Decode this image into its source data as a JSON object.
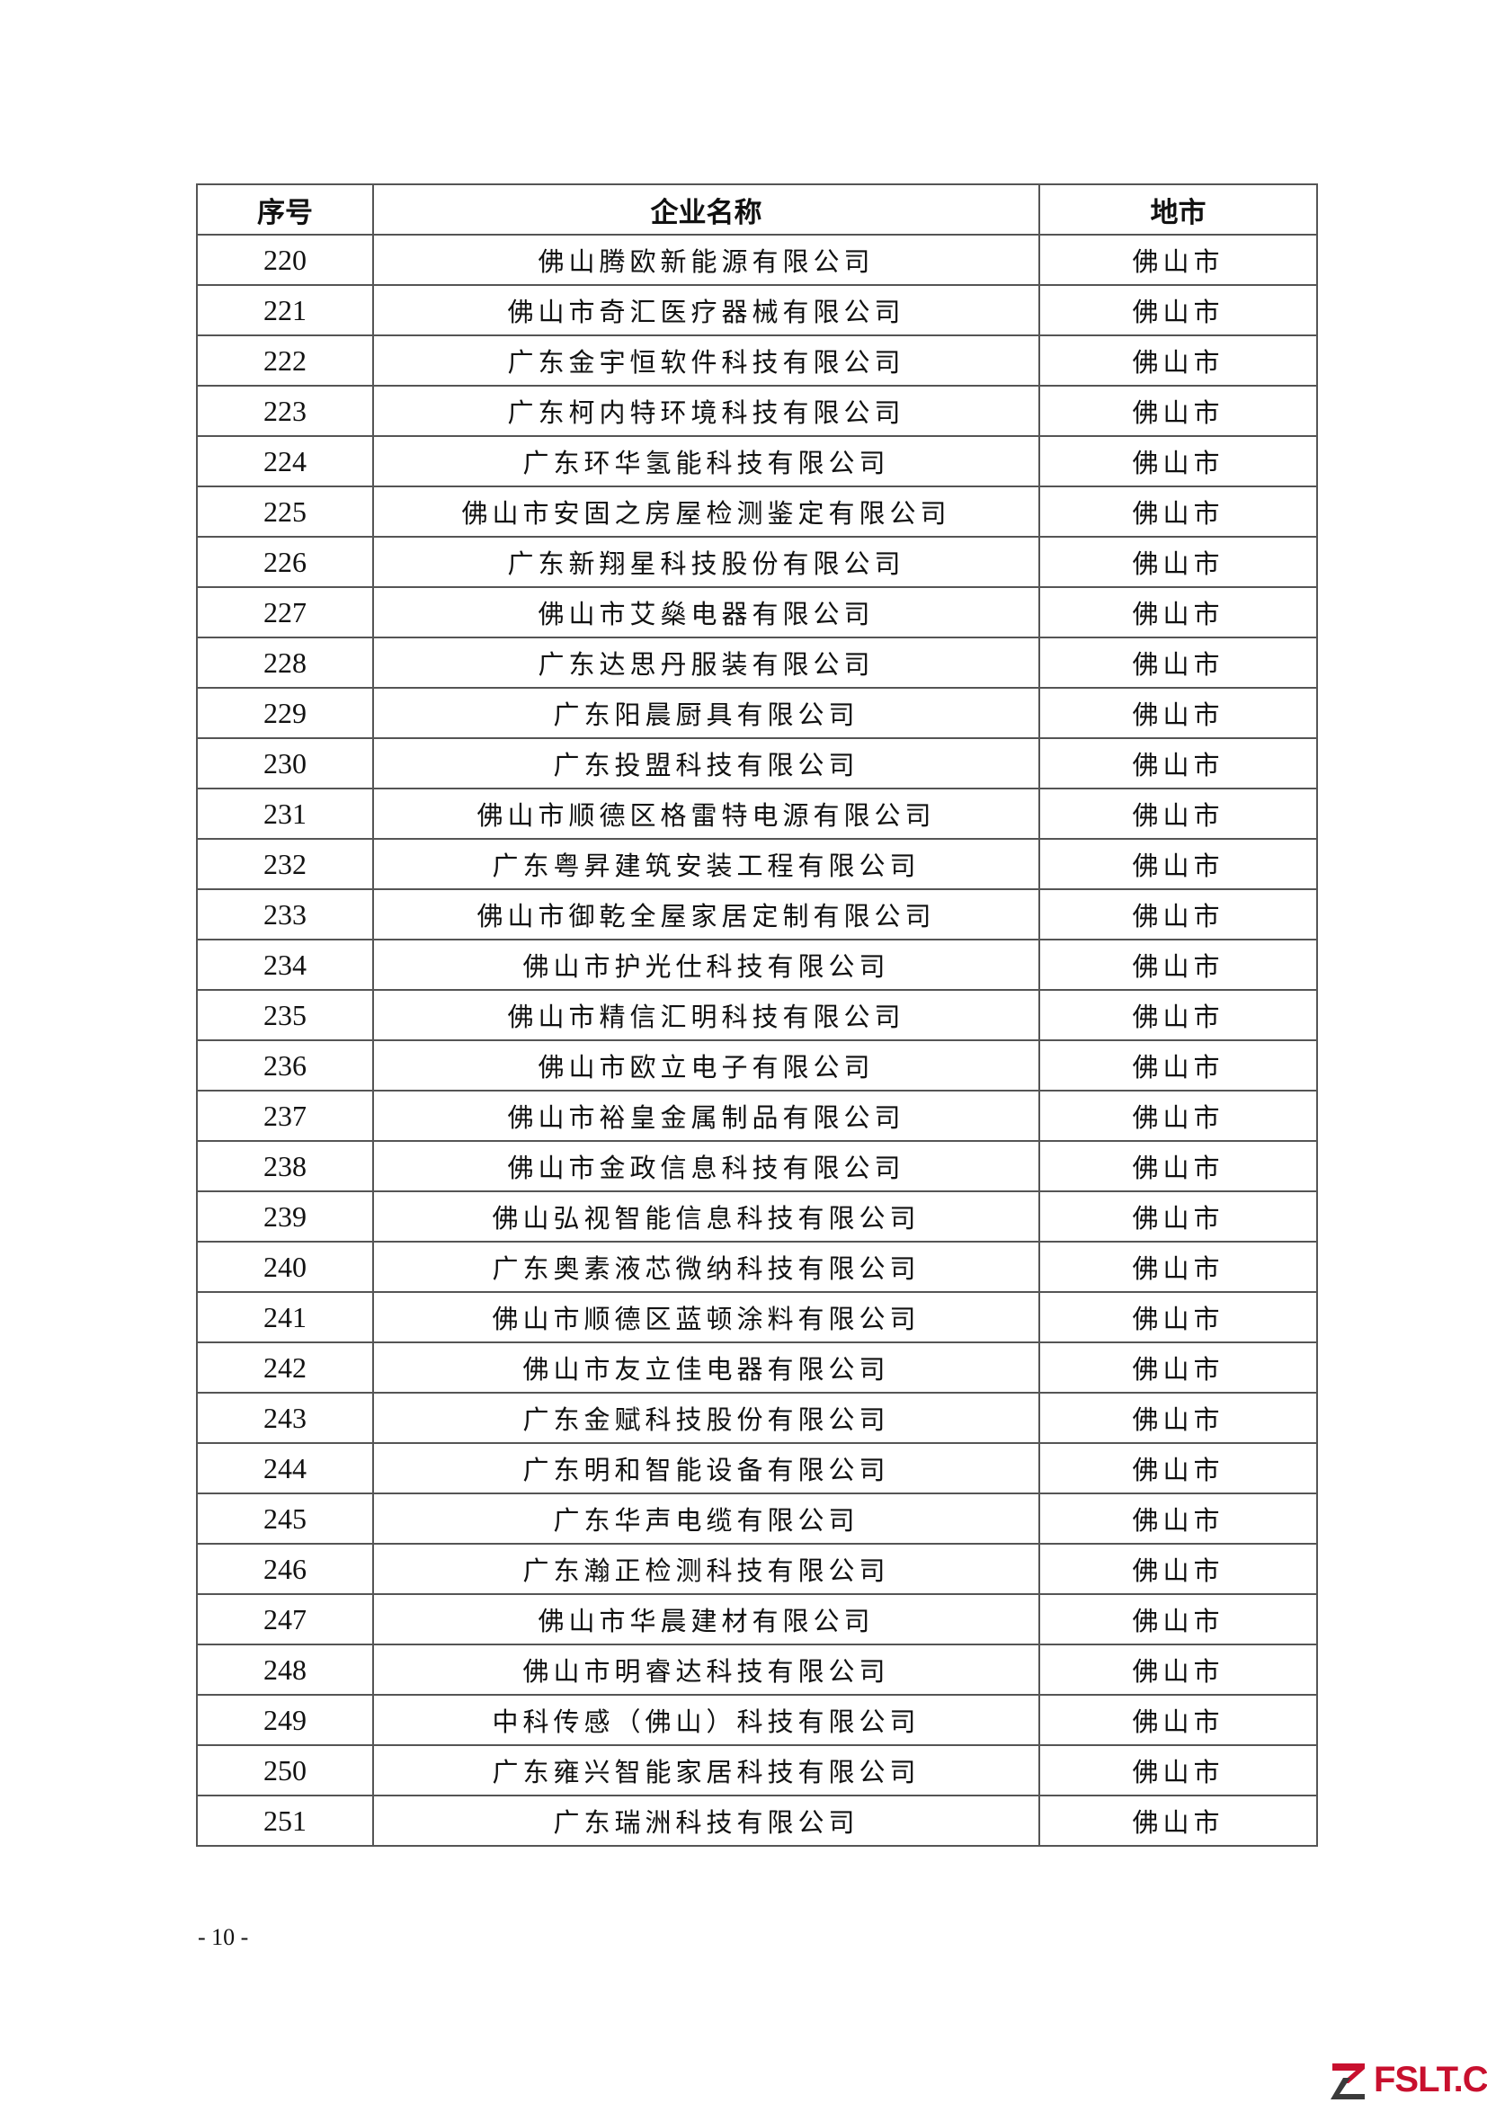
{
  "table": {
    "headers": [
      "序号",
      "企业名称",
      "地市"
    ],
    "rows": [
      [
        "220",
        "佛山腾欧新能源有限公司",
        "佛山市"
      ],
      [
        "221",
        "佛山市奇汇医疗器械有限公司",
        "佛山市"
      ],
      [
        "222",
        "广东金宇恒软件科技有限公司",
        "佛山市"
      ],
      [
        "223",
        "广东柯内特环境科技有限公司",
        "佛山市"
      ],
      [
        "224",
        "广东环华氢能科技有限公司",
        "佛山市"
      ],
      [
        "225",
        "佛山市安固之房屋检测鉴定有限公司",
        "佛山市"
      ],
      [
        "226",
        "广东新翔星科技股份有限公司",
        "佛山市"
      ],
      [
        "227",
        "佛山市艾燊电器有限公司",
        "佛山市"
      ],
      [
        "228",
        "广东达思丹服装有限公司",
        "佛山市"
      ],
      [
        "229",
        "广东阳晨厨具有限公司",
        "佛山市"
      ],
      [
        "230",
        "广东投盟科技有限公司",
        "佛山市"
      ],
      [
        "231",
        "佛山市顺德区格雷特电源有限公司",
        "佛山市"
      ],
      [
        "232",
        "广东粤昇建筑安装工程有限公司",
        "佛山市"
      ],
      [
        "233",
        "佛山市御乾全屋家居定制有限公司",
        "佛山市"
      ],
      [
        "234",
        "佛山市护光仕科技有限公司",
        "佛山市"
      ],
      [
        "235",
        "佛山市精信汇明科技有限公司",
        "佛山市"
      ],
      [
        "236",
        "佛山市欧立电子有限公司",
        "佛山市"
      ],
      [
        "237",
        "佛山市裕皇金属制品有限公司",
        "佛山市"
      ],
      [
        "238",
        "佛山市金政信息科技有限公司",
        "佛山市"
      ],
      [
        "239",
        "佛山弘视智能信息科技有限公司",
        "佛山市"
      ],
      [
        "240",
        "广东奥素液芯微纳科技有限公司",
        "佛山市"
      ],
      [
        "241",
        "佛山市顺德区蓝顿涂料有限公司",
        "佛山市"
      ],
      [
        "242",
        "佛山市友立佳电器有限公司",
        "佛山市"
      ],
      [
        "243",
        "广东金赋科技股份有限公司",
        "佛山市"
      ],
      [
        "244",
        "广东明和智能设备有限公司",
        "佛山市"
      ],
      [
        "245",
        "广东华声电缆有限公司",
        "佛山市"
      ],
      [
        "246",
        "广东瀚正检测科技有限公司",
        "佛山市"
      ],
      [
        "247",
        "佛山市华晨建材有限公司",
        "佛山市"
      ],
      [
        "248",
        "佛山市明睿达科技有限公司",
        "佛山市"
      ],
      [
        "249",
        "中科传感（佛山）科技有限公司",
        "佛山市"
      ],
      [
        "250",
        "广东雍兴智能家居科技有限公司",
        "佛山市"
      ],
      [
        "251",
        "广东瑞洲科技有限公司",
        "佛山市"
      ]
    ]
  },
  "footer": {
    "page_number": "- 10 -"
  },
  "watermark": {
    "text": "FSLT.CN",
    "color": "#c8102e"
  }
}
